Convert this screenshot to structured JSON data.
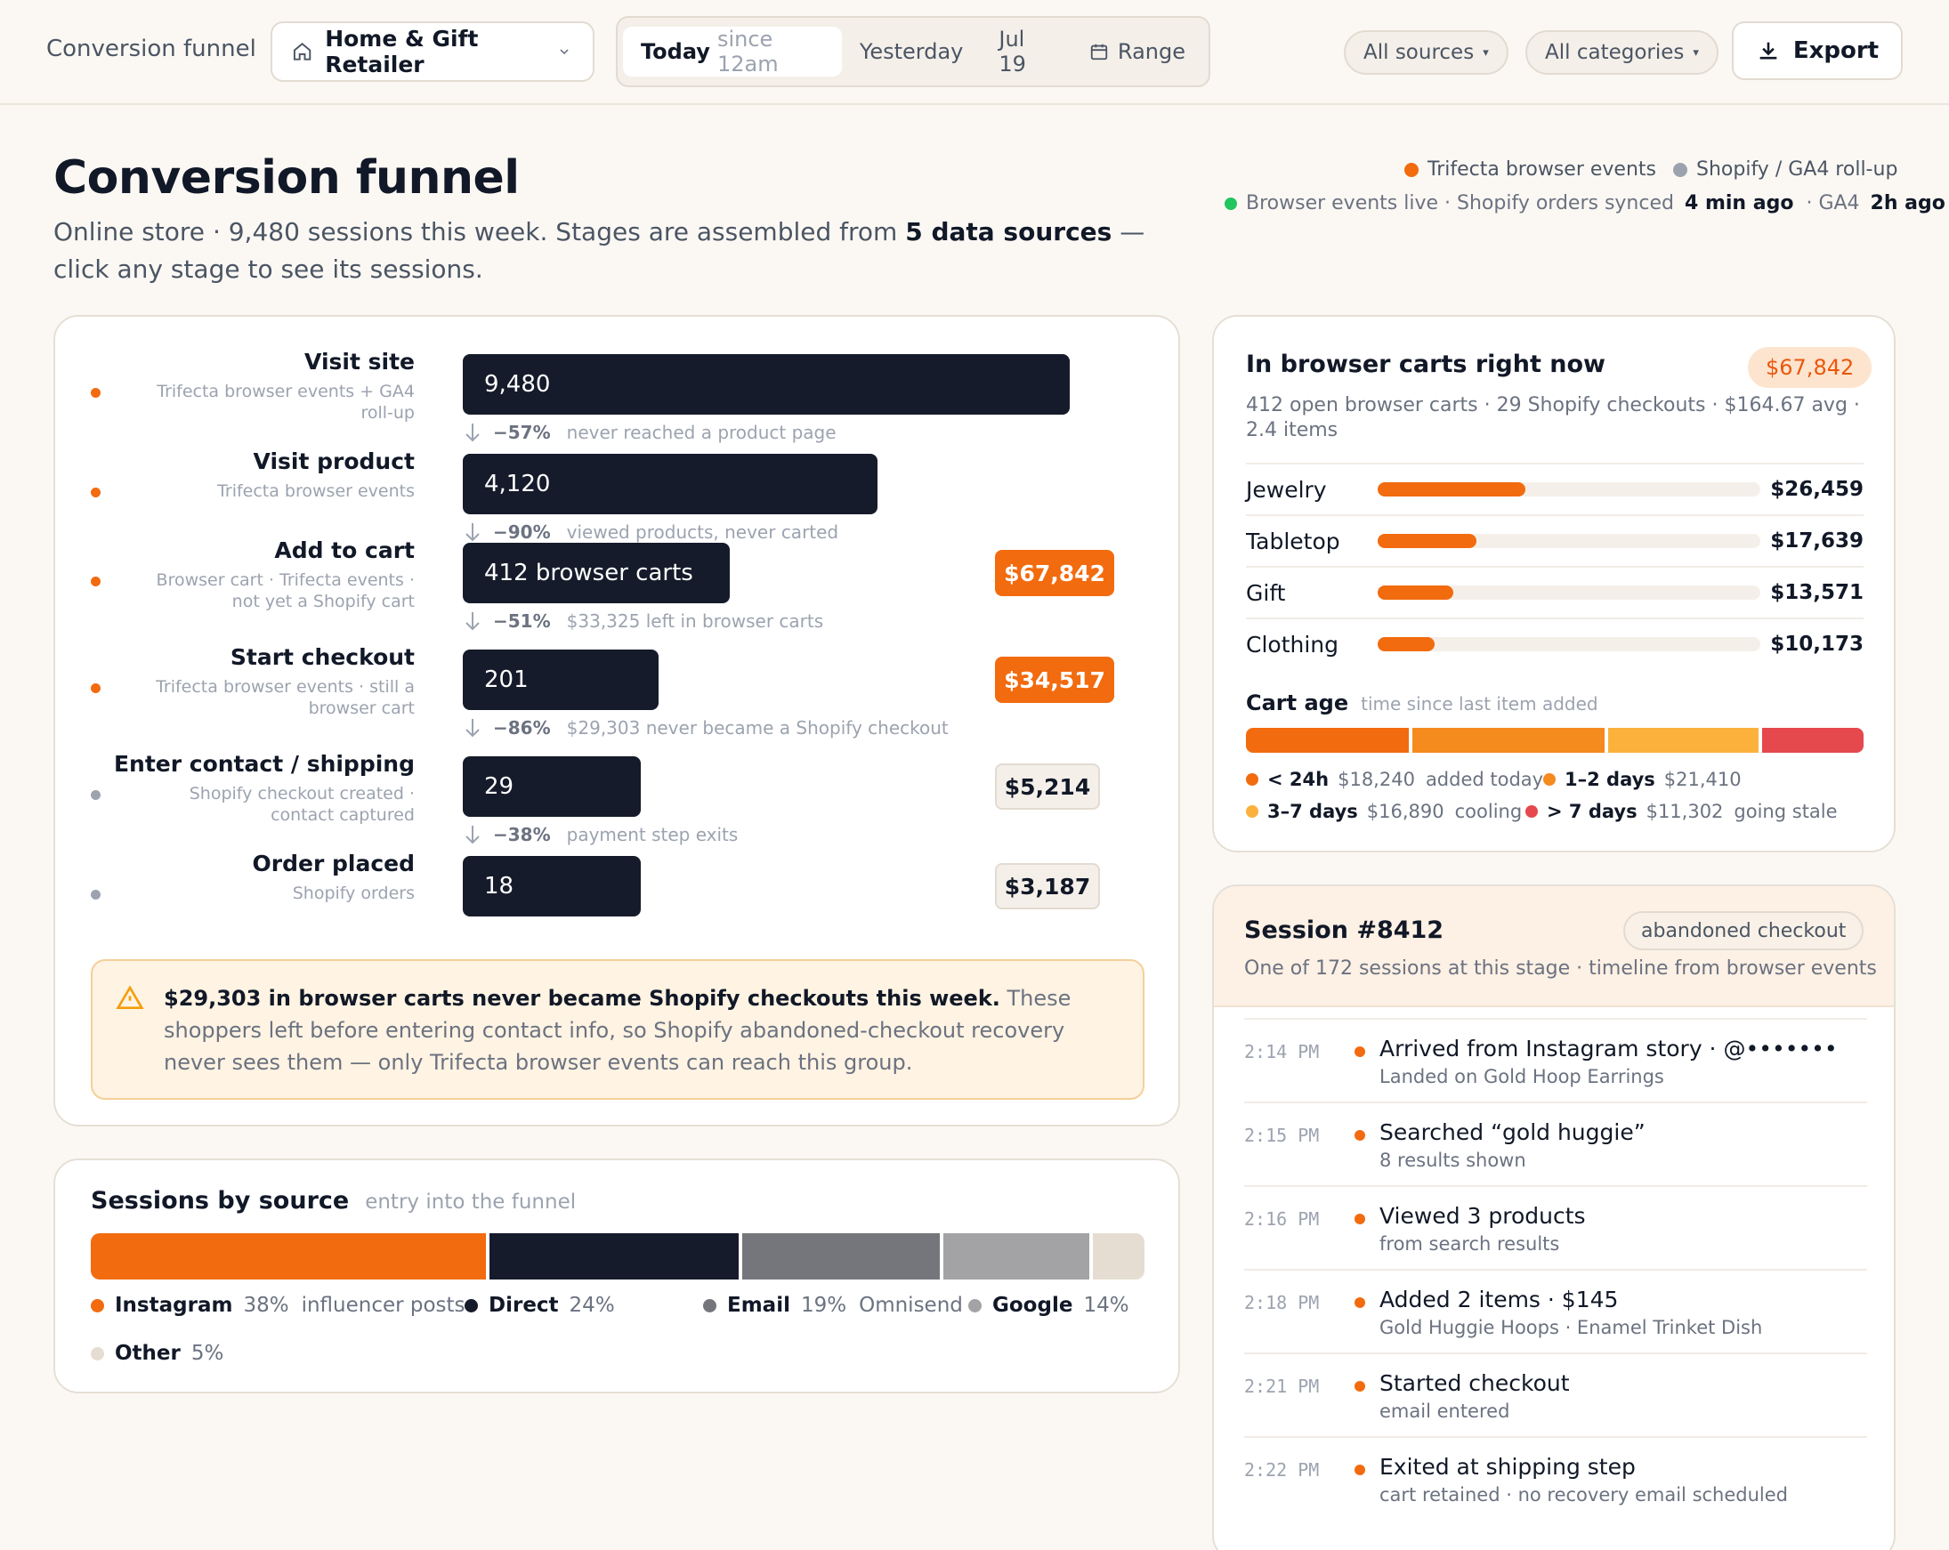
{
  "topbar": {
    "title": "Conversion funnel",
    "store": "Home & Gift Retailer",
    "ranges": [
      {
        "label": "Today",
        "sub": "since 12am",
        "active": true
      },
      {
        "label": "Yesterday"
      },
      {
        "label": "Jul 19"
      },
      {
        "label": "Range"
      }
    ],
    "filters": [
      "All sources",
      "All categories"
    ],
    "export": "Export"
  },
  "header": {
    "title": "Conversion funnel",
    "intro_a": "Online store · 9,480 sessions this week. Stages are assembled from ",
    "intro_b": "5 data sources",
    "intro_c": " — click any stage to see its sessions.",
    "legend": [
      {
        "label": "Trifecta browser events",
        "color": "#f26b0f"
      },
      {
        "label": "Shopify / GA4 roll-up",
        "color": "#9ca3af"
      }
    ],
    "status_a": "Browser events live · Shopify orders synced",
    "status_b": "4 min ago",
    "status_c": "· GA4",
    "status_d": "2h ago",
    "status_color": "#22c55e"
  },
  "funnel": {
    "stages": [
      {
        "name": "Visit site",
        "source": "Trifecta browser events + GA4 roll-up",
        "dot": "#f26b0f",
        "bar": "9,480",
        "value": 9480,
        "badge": ""
      },
      {
        "name": "Visit product",
        "source": "Trifecta browser events",
        "dot": "#f26b0f",
        "bar": "4,120",
        "value": 4120,
        "badge": ""
      },
      {
        "name": "Add to cart",
        "source": "Browser cart · Trifecta events · not yet a Shopify cart",
        "dot": "#f26b0f",
        "bar": "412 browser carts",
        "value": 412,
        "badge": "$67,842",
        "badge_style": "orange"
      },
      {
        "name": "Start checkout",
        "source": "Trifecta browser events · still a browser cart",
        "dot": "#f26b0f",
        "bar": "201",
        "value": 201,
        "badge": "$34,517",
        "badge_style": "orange"
      },
      {
        "name": "Enter contact / shipping",
        "source": "Shopify checkout created · contact captured",
        "dot": "#9ca3af",
        "bar": "29",
        "value": 29,
        "badge": "$5,214",
        "badge_style": "gray"
      },
      {
        "name": "Order placed",
        "source": "Shopify orders",
        "dot": "#9ca3af",
        "bar": "18",
        "value": 18,
        "badge": "$3,187",
        "badge_style": "gray"
      }
    ],
    "drops": [
      {
        "pct": "−57%",
        "text": "never reached a product page"
      },
      {
        "pct": "−90%",
        "text": "viewed products, never carted"
      },
      {
        "pct": "−51%",
        "text": "$33,325 left in browser carts"
      },
      {
        "pct": "−86%",
        "text": "$29,303 never became a Shopify checkout"
      },
      {
        "pct": "−38%",
        "text": "payment step exits"
      }
    ],
    "warning_bold": "$29,303 in browser carts never became Shopify checkouts this week.",
    "warning_text": " These shoppers left before entering contact info, so Shopify abandoned-checkout recovery never sees them — only Trifecta browser events can reach this group."
  },
  "sources": {
    "title": "Sessions by source",
    "subtitle": "entry into the funnel",
    "items": [
      {
        "name": "Instagram",
        "pct": "38%",
        "value": 38,
        "note": "influencer posts",
        "color": "#f26b0f"
      },
      {
        "name": "Direct",
        "pct": "24%",
        "value": 24,
        "note": "",
        "color": "#161b2b"
      },
      {
        "name": "Email",
        "pct": "19%",
        "value": 19,
        "note": "Omnisend",
        "color": "#75767b"
      },
      {
        "name": "Google",
        "pct": "14%",
        "value": 14,
        "note": "",
        "color": "#a3a3a6"
      },
      {
        "name": "Other",
        "pct": "5%",
        "value": 5,
        "note": "",
        "color": "#e6ddd2"
      }
    ]
  },
  "carts": {
    "title": "In browser carts right now",
    "total": "$67,842",
    "summary": "412 open browser carts · 29 Shopify checkouts · $164.67 avg · 2.4 items",
    "categories": [
      {
        "name": "Jewelry",
        "value": "$26,459",
        "amount": 26459
      },
      {
        "name": "Tabletop",
        "value": "$17,639",
        "amount": 17639
      },
      {
        "name": "Gift",
        "value": "$13,571",
        "amount": 13571
      },
      {
        "name": "Clothing",
        "value": "$10,173",
        "amount": 10173
      }
    ],
    "age_title": "Cart age",
    "age_sub": "time since last item added",
    "ages": [
      {
        "label": "< 24h",
        "value": "$18,240",
        "amount": 18240,
        "note": "added today",
        "color": "#f26b0f"
      },
      {
        "label": "1–2 days",
        "value": "$21,410",
        "amount": 21410,
        "note": "",
        "color": "#f58a1f"
      },
      {
        "label": "3–7 days",
        "value": "$16,890",
        "amount": 16890,
        "note": "cooling",
        "color": "#fbb13c"
      },
      {
        "label": "> 7 days",
        "value": "$11,302",
        "amount": 11302,
        "note": "going stale",
        "color": "#e5484d"
      }
    ]
  },
  "session": {
    "title": "Session #8412",
    "tag": "abandoned checkout",
    "subtitle": "One of 172 sessions at this stage · timeline from browser events",
    "events": [
      {
        "time": "2:14 PM",
        "title": "Arrived from Instagram story · @•••••••",
        "sub": "Landed on Gold Hoop Earrings"
      },
      {
        "time": "2:15 PM",
        "title": "Searched “gold huggie”",
        "sub": "8 results shown"
      },
      {
        "time": "2:16 PM",
        "title": "Viewed 3 products",
        "sub": "from search results"
      },
      {
        "time": "2:18 PM",
        "title": "Added 2 items · $145",
        "sub": "Gold Huggie Hoops · Enamel Trinket Dish"
      },
      {
        "time": "2:21 PM",
        "title": "Started checkout",
        "sub": "email entered"
      },
      {
        "time": "2:22 PM",
        "title": "Exited at shipping step",
        "sub": "cart retained · no recovery email scheduled"
      }
    ]
  }
}
